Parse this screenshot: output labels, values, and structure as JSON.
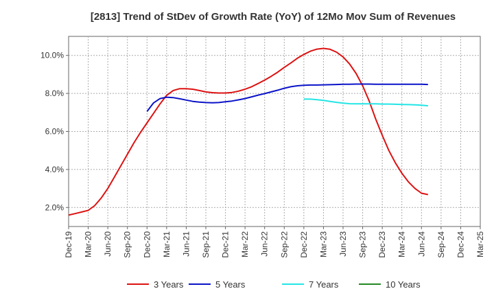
{
  "chart_data": {
    "type": "line",
    "title": "[2813]  Trend of StDev of Growth Rate (YoY) of 12Mo Mov Sum of Revenues",
    "xlabel": "",
    "ylabel": "",
    "ylim": [
      1.0,
      11.0
    ],
    "y_ticks": [
      2.0,
      4.0,
      6.0,
      8.0,
      10.0
    ],
    "y_tick_labels": [
      "2.0%",
      "4.0%",
      "6.0%",
      "8.0%",
      "10.0%"
    ],
    "x_tick_labels": [
      "Dec-19",
      "Mar-20",
      "Jun-20",
      "Sep-20",
      "Dec-20",
      "Mar-21",
      "Jun-21",
      "Sep-21",
      "Dec-21",
      "Mar-22",
      "Jun-22",
      "Sep-22",
      "Dec-22",
      "Mar-23",
      "Jun-23",
      "Sep-23",
      "Dec-23",
      "Mar-24",
      "Jun-24",
      "Sep-24",
      "Dec-24",
      "Mar-25"
    ],
    "x_index_range": [
      0,
      63
    ],
    "grid": true,
    "legend_position": "bottom",
    "series": [
      {
        "name": "3 Years",
        "color": "#dd1111",
        "points": [
          [
            0,
            1.6
          ],
          [
            1,
            1.68
          ],
          [
            2,
            1.76
          ],
          [
            3,
            1.85
          ],
          [
            4,
            2.1
          ],
          [
            5,
            2.5
          ],
          [
            6,
            3.0
          ],
          [
            7,
            3.6
          ],
          [
            8,
            4.2
          ],
          [
            9,
            4.8
          ],
          [
            10,
            5.4
          ],
          [
            11,
            5.95
          ],
          [
            12,
            6.45
          ],
          [
            13,
            6.95
          ],
          [
            14,
            7.45
          ],
          [
            15,
            7.9
          ],
          [
            16,
            8.15
          ],
          [
            17,
            8.25
          ],
          [
            18,
            8.25
          ],
          [
            19,
            8.22
          ],
          [
            20,
            8.15
          ],
          [
            21,
            8.08
          ],
          [
            22,
            8.04
          ],
          [
            23,
            8.02
          ],
          [
            24,
            8.02
          ],
          [
            25,
            8.05
          ],
          [
            26,
            8.12
          ],
          [
            27,
            8.22
          ],
          [
            28,
            8.35
          ],
          [
            29,
            8.52
          ],
          [
            30,
            8.7
          ],
          [
            31,
            8.9
          ],
          [
            32,
            9.12
          ],
          [
            33,
            9.37
          ],
          [
            34,
            9.6
          ],
          [
            35,
            9.85
          ],
          [
            36,
            10.05
          ],
          [
            37,
            10.22
          ],
          [
            38,
            10.33
          ],
          [
            39,
            10.37
          ],
          [
            40,
            10.32
          ],
          [
            41,
            10.17
          ],
          [
            42,
            9.92
          ],
          [
            43,
            9.55
          ],
          [
            44,
            9.05
          ],
          [
            45,
            8.4
          ],
          [
            46,
            7.6
          ],
          [
            47,
            6.65
          ],
          [
            48,
            5.8
          ],
          [
            49,
            5.0
          ],
          [
            50,
            4.35
          ],
          [
            51,
            3.8
          ],
          [
            52,
            3.35
          ],
          [
            53,
            3.0
          ],
          [
            54,
            2.75
          ],
          [
            55,
            2.68
          ]
        ]
      },
      {
        "name": "5 Years",
        "color": "#0a12c8",
        "points": [
          [
            12,
            7.05
          ],
          [
            13,
            7.5
          ],
          [
            14,
            7.73
          ],
          [
            15,
            7.8
          ],
          [
            16,
            7.78
          ],
          [
            17,
            7.72
          ],
          [
            18,
            7.65
          ],
          [
            19,
            7.58
          ],
          [
            20,
            7.54
          ],
          [
            21,
            7.52
          ],
          [
            22,
            7.51
          ],
          [
            23,
            7.52
          ],
          [
            24,
            7.56
          ],
          [
            25,
            7.6
          ],
          [
            26,
            7.66
          ],
          [
            27,
            7.73
          ],
          [
            28,
            7.82
          ],
          [
            29,
            7.91
          ],
          [
            30,
            7.99
          ],
          [
            31,
            8.08
          ],
          [
            32,
            8.17
          ],
          [
            33,
            8.27
          ],
          [
            34,
            8.35
          ],
          [
            35,
            8.4
          ],
          [
            36,
            8.43
          ],
          [
            37,
            8.44
          ],
          [
            38,
            8.44
          ],
          [
            39,
            8.45
          ],
          [
            40,
            8.46
          ],
          [
            41,
            8.47
          ],
          [
            42,
            8.48
          ],
          [
            43,
            8.48
          ],
          [
            44,
            8.49
          ],
          [
            45,
            8.49
          ],
          [
            46,
            8.49
          ],
          [
            47,
            8.48
          ],
          [
            48,
            8.48
          ],
          [
            49,
            8.48
          ],
          [
            50,
            8.48
          ],
          [
            51,
            8.48
          ],
          [
            52,
            8.48
          ],
          [
            53,
            8.48
          ],
          [
            54,
            8.48
          ],
          [
            55,
            8.47
          ]
        ]
      },
      {
        "name": "7 Years",
        "color": "#22e5e5",
        "points": [
          [
            36,
            7.7
          ],
          [
            37,
            7.7
          ],
          [
            38,
            7.67
          ],
          [
            39,
            7.63
          ],
          [
            40,
            7.58
          ],
          [
            41,
            7.53
          ],
          [
            42,
            7.49
          ],
          [
            43,
            7.46
          ],
          [
            44,
            7.45
          ],
          [
            45,
            7.45
          ],
          [
            46,
            7.45
          ],
          [
            47,
            7.45
          ],
          [
            48,
            7.44
          ],
          [
            49,
            7.44
          ],
          [
            50,
            7.43
          ],
          [
            51,
            7.42
          ],
          [
            52,
            7.41
          ],
          [
            53,
            7.4
          ],
          [
            54,
            7.38
          ],
          [
            55,
            7.35
          ]
        ]
      },
      {
        "name": "10 Years",
        "color": "#228822",
        "points": []
      }
    ]
  }
}
